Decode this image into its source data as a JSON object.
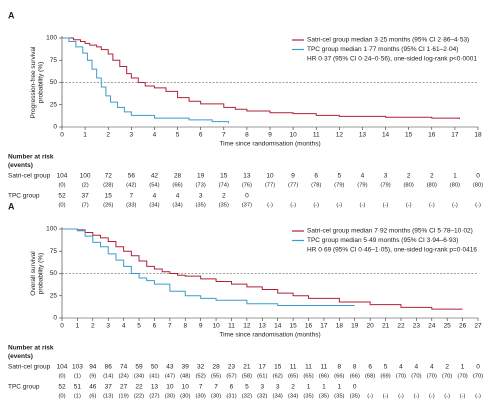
{
  "chart_data": [
    {
      "type": "line",
      "panel": "A",
      "y_label": [
        "Progression-free survival",
        "probability (%)"
      ],
      "x_label": "Time since randomisation (months)",
      "xlim": [
        0,
        18
      ],
      "xticks": [
        0,
        1,
        2,
        3,
        4,
        5,
        6,
        7,
        8,
        9,
        10,
        11,
        12,
        13,
        14,
        15,
        16,
        17,
        18
      ],
      "ylim": [
        0,
        100
      ],
      "yticks": [
        0,
        25,
        50,
        75,
        100
      ],
      "ref_line": 50,
      "annotation": "HR 0·37 (95% CI 0·24–0·56), one-sided log-rank p<0·0001",
      "series": [
        {
          "name": "Satri-cel group median 3·25 months (95% CI 2·86–4·53)",
          "color": "#b0203a",
          "x": [
            0,
            0.5,
            0.8,
            1,
            1.2,
            1.5,
            1.7,
            2,
            2.2,
            2.5,
            2.8,
            3,
            3.3,
            3.6,
            4,
            4.5,
            5,
            5.5,
            6,
            7,
            7.5,
            8,
            9,
            10,
            11,
            12,
            14,
            16,
            17.2
          ],
          "values": [
            100,
            98,
            96,
            94,
            92,
            90,
            87,
            82,
            75,
            68,
            60,
            55,
            50,
            46,
            44,
            40,
            33,
            29,
            26,
            22,
            20,
            18,
            16,
            15,
            13,
            12,
            11,
            10,
            9
          ]
        },
        {
          "name": "TPC group median 1·77 months (95% CI 1·61–2·04)",
          "color": "#3b9cc9",
          "x": [
            0,
            0.3,
            0.6,
            0.9,
            1.1,
            1.3,
            1.5,
            1.7,
            1.9,
            2.1,
            2.4,
            2.7,
            3,
            4,
            5.5,
            6.5,
            7.2
          ],
          "values": [
            100,
            96,
            90,
            83,
            75,
            65,
            55,
            45,
            35,
            28,
            22,
            17,
            13,
            10,
            8,
            6,
            4
          ]
        }
      ],
      "risk_table": {
        "title": "Number at risk",
        "subtitle": "(events)",
        "rows": [
          {
            "label": "Satri-cel group",
            "at_risk": [
              104,
              100,
              72,
              56,
              42,
              28,
              19,
              15,
              13,
              10,
              9,
              6,
              5,
              4,
              3,
              2,
              2,
              1,
              0
            ],
            "events": [
              "(0)",
              "(2)",
              "(28)",
              "(42)",
              "(54)",
              "(66)",
              "(73)",
              "(74)",
              "(76)",
              "(77)",
              "(77)",
              "(78)",
              "(79)",
              "(79)",
              "(79)",
              "(80)",
              "(80)",
              "(80)",
              "(80)"
            ]
          },
          {
            "label": "TPC group",
            "at_risk": [
              52,
              37,
              15,
              7,
              4,
              4,
              3,
              2,
              0,
              null,
              null,
              null,
              null,
              null,
              null,
              null,
              null,
              null,
              null
            ],
            "events": [
              "(0)",
              "(7)",
              "(26)",
              "(33)",
              "(34)",
              "(34)",
              "(35)",
              "(35)",
              "(37)",
              "(-)",
              "(-)",
              "(-)",
              "(-)",
              "(-)",
              "(-)",
              "(-)",
              "(-)",
              "(-)",
              "(-)"
            ]
          }
        ]
      }
    },
    {
      "type": "line",
      "panel": "A",
      "y_label": [
        "Overall survival",
        "probability (%)"
      ],
      "x_label": "Time since randomisation (months)",
      "xlim": [
        0,
        27
      ],
      "xticks": [
        0,
        1,
        2,
        3,
        4,
        5,
        6,
        7,
        8,
        9,
        10,
        11,
        12,
        13,
        14,
        15,
        16,
        17,
        18,
        19,
        20,
        21,
        22,
        23,
        24,
        25,
        26,
        27
      ],
      "ylim": [
        0,
        100
      ],
      "yticks": [
        0,
        25,
        50,
        75,
        100
      ],
      "ref_line": 50,
      "annotation": "HR 0·69 (95% CI 0·46–1·05), one-sided log-rank p=0·0416",
      "series": [
        {
          "name": "Satri-cel group median 7·92 months (95% CI 5·78–10·02)",
          "color": "#b0203a",
          "x": [
            0,
            1,
            1.5,
            2,
            2.5,
            3,
            3.5,
            4,
            4.5,
            5,
            5.5,
            6,
            6.5,
            7,
            7.5,
            8,
            9,
            10,
            11,
            12,
            13,
            14,
            15,
            16,
            18,
            20,
            22,
            24,
            26
          ],
          "values": [
            100,
            99,
            96,
            93,
            90,
            86,
            80,
            75,
            70,
            64,
            58,
            55,
            52,
            50,
            48,
            47,
            44,
            41,
            38,
            35,
            32,
            28,
            25,
            22,
            18,
            15,
            12,
            10,
            10
          ]
        },
        {
          "name": "TPC group median 5·49 months (95% CI 3·94–6·93)",
          "color": "#3b9cc9",
          "x": [
            0,
            1,
            1.5,
            2,
            2.5,
            3,
            3.5,
            4,
            4.5,
            5,
            5.5,
            6,
            7,
            8,
            9,
            10,
            12,
            14,
            16,
            18,
            19
          ],
          "values": [
            100,
            98,
            92,
            85,
            80,
            72,
            65,
            58,
            50,
            45,
            42,
            38,
            30,
            25,
            22,
            20,
            16,
            14,
            14,
            14,
            14
          ]
        }
      ],
      "risk_table": {
        "title": "Number at risk",
        "subtitle": "(events)",
        "rows": [
          {
            "label": "Satri-cel group",
            "at_risk": [
              104,
              103,
              94,
              86,
              74,
              59,
              50,
              43,
              39,
              32,
              28,
              23,
              21,
              17,
              15,
              11,
              11,
              11,
              8,
              8,
              6,
              5,
              4,
              4,
              4,
              2,
              1,
              0
            ],
            "events": [
              "(0)",
              "(1)",
              "(9)",
              "(14)",
              "(24)",
              "(34)",
              "(41)",
              "(47)",
              "(48)",
              "(52)",
              "(55)",
              "(57)",
              "(58)",
              "(61)",
              "(62)",
              "(65)",
              "(65)",
              "(66)",
              "(66)",
              "(66)",
              "(68)",
              "(69)",
              "(70)",
              "(70)",
              "(70)",
              "(70)",
              "(70)",
              "(70)"
            ]
          },
          {
            "label": "TPC group",
            "at_risk": [
              52,
              51,
              46,
              37,
              27,
              22,
              13,
              10,
              10,
              7,
              7,
              6,
              5,
              3,
              3,
              2,
              1,
              1,
              1,
              0,
              null,
              null,
              null,
              null,
              null,
              null,
              null,
              null
            ],
            "events": [
              "(0)",
              "(1)",
              "(6)",
              "(13)",
              "(19)",
              "(22)",
              "(27)",
              "(30)",
              "(30)",
              "(30)",
              "(30)",
              "(31)",
              "(32)",
              "(32)",
              "(34)",
              "(34)",
              "(35)",
              "(35)",
              "(35)",
              "(35)",
              "(-)",
              "(-)",
              "(-)",
              "(-)",
              "(-)",
              "(-)",
              "(-)",
              "(-)"
            ]
          }
        ]
      }
    }
  ]
}
